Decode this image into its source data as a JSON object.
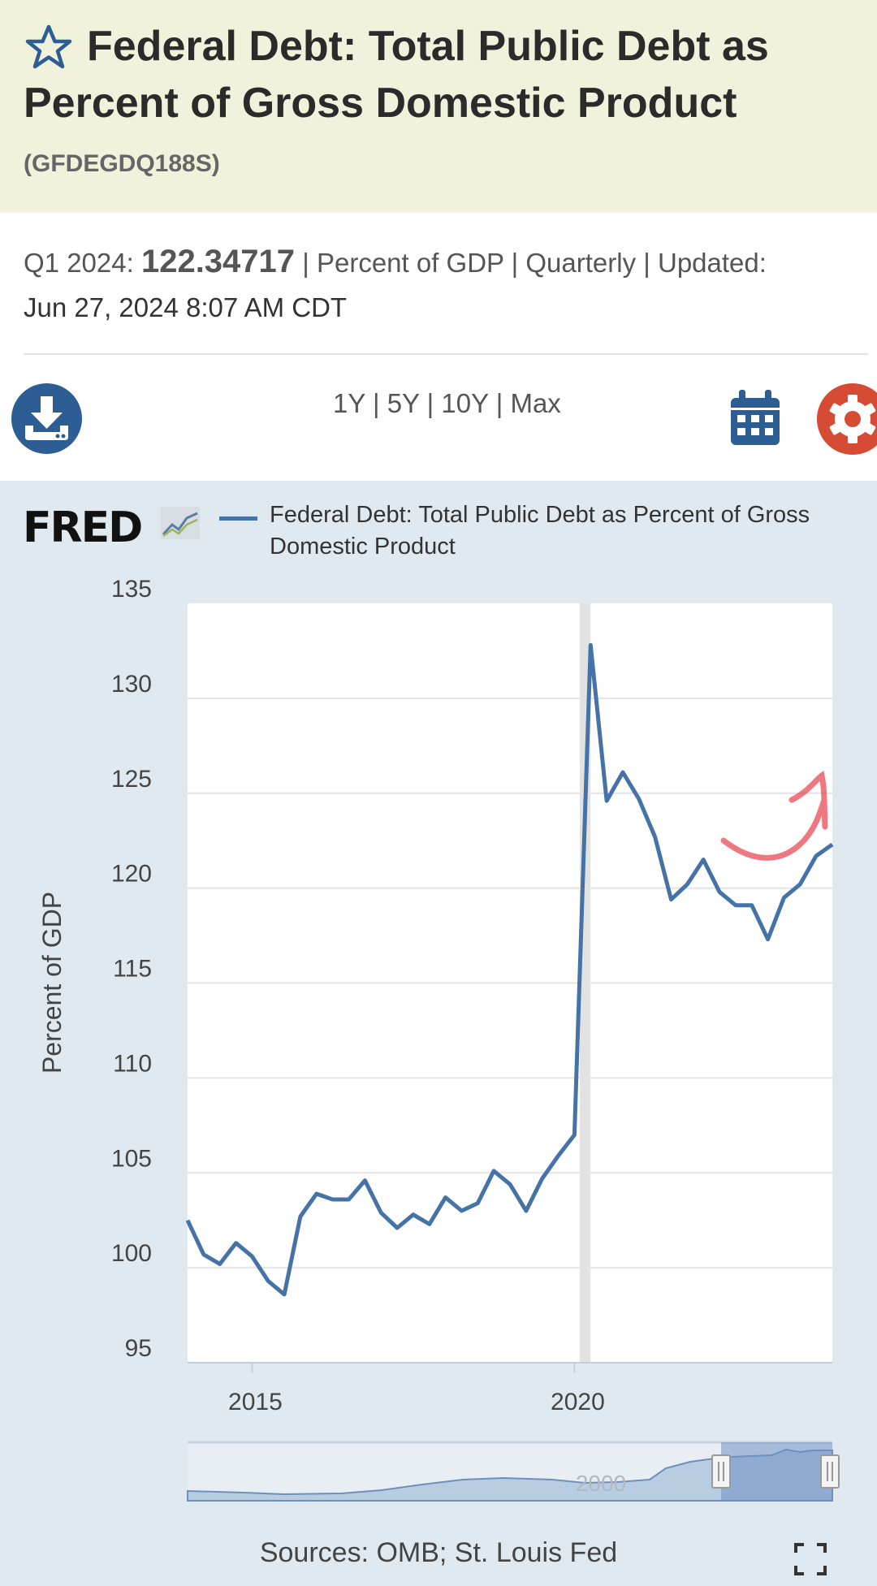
{
  "header": {
    "title": "Federal Debt: Total Public Debt as Percent of Gross Domestic Product",
    "series_id": "(GFDEGDQ188S)",
    "star_icon": "star-outline-icon"
  },
  "meta": {
    "period": "Q1 2024:",
    "value": "122.34717",
    "details": "| Percent of GDP | Quarterly | Updated:",
    "updated": "Jun 27, 2024 8:07 AM CDT"
  },
  "toolbar": {
    "download_icon": "download-icon",
    "ranges": [
      "1Y",
      "5Y",
      "10Y",
      "Max"
    ],
    "calendar_icon": "calendar-icon",
    "settings_icon": "gear-icon"
  },
  "chart": {
    "logo": "FRED",
    "legend": "Federal Debt: Total Public Debt as Percent of Gross Domestic Product",
    "sources": "Sources: OMB; St. Louis Fed",
    "navigator_label": "2000",
    "colors": {
      "series": "#4572a7",
      "recession": "#e2e2e2",
      "panel": "#e1e9f0",
      "annotation": "#e84a55"
    }
  },
  "chart_data": {
    "type": "line",
    "ylabel": "Percent of GDP",
    "xlabel": "",
    "ylim": [
      95,
      135
    ],
    "yticks": [
      95,
      100,
      105,
      110,
      115,
      120,
      125,
      130,
      135
    ],
    "xticks": [
      "2015",
      "2020"
    ],
    "grid": true,
    "legend_position": "top",
    "recession_shading": [
      [
        "2020-02",
        "2020-04"
      ]
    ],
    "series": [
      {
        "name": "Federal Debt: Total Public Debt as Percent of Gross Domestic Product",
        "x": [
          "2014-01",
          "2014-04",
          "2014-07",
          "2014-10",
          "2015-01",
          "2015-04",
          "2015-07",
          "2015-10",
          "2016-01",
          "2016-04",
          "2016-07",
          "2016-10",
          "2017-01",
          "2017-04",
          "2017-07",
          "2017-10",
          "2018-01",
          "2018-04",
          "2018-07",
          "2018-10",
          "2019-01",
          "2019-04",
          "2019-07",
          "2019-10",
          "2020-01",
          "2020-04",
          "2020-07",
          "2020-10",
          "2021-01",
          "2021-04",
          "2021-07",
          "2021-10",
          "2022-01",
          "2022-04",
          "2022-07",
          "2022-10",
          "2023-01",
          "2023-04",
          "2023-07",
          "2023-10",
          "2024-01"
        ],
        "values": [
          102.5,
          100.7,
          100.2,
          101.3,
          100.6,
          99.3,
          98.6,
          102.7,
          103.9,
          103.6,
          103.6,
          104.6,
          102.9,
          102.1,
          102.8,
          102.3,
          103.7,
          103.0,
          103.4,
          105.1,
          104.4,
          103.0,
          104.7,
          105.9,
          107.0,
          132.8,
          124.6,
          126.1,
          124.7,
          122.7,
          119.4,
          120.2,
          121.5,
          119.8,
          119.1,
          119.1,
          117.3,
          119.5,
          120.2,
          121.7,
          122.3
        ]
      }
    ]
  }
}
